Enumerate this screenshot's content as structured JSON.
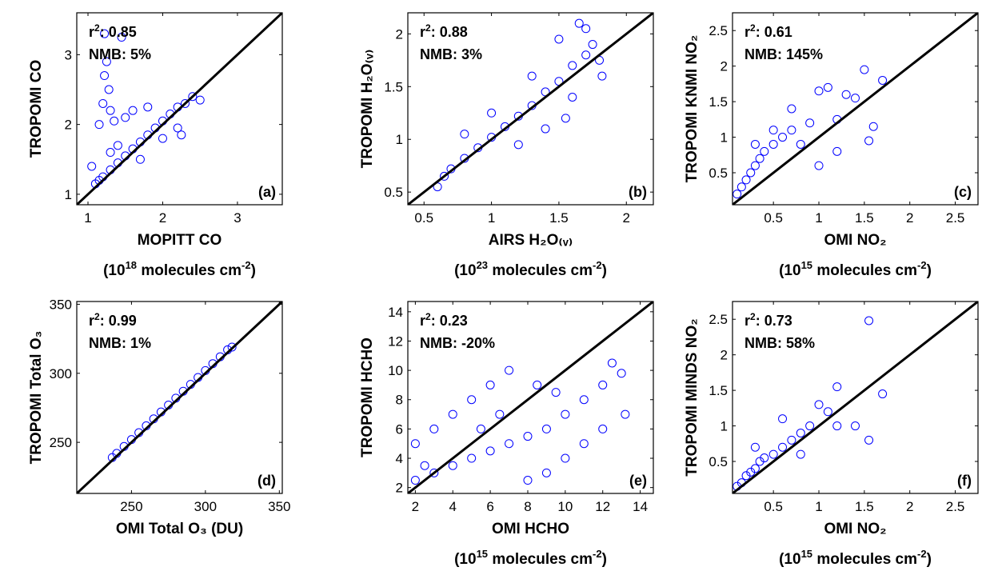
{
  "chart_data": [
    {
      "type": "scatter",
      "panel_label": "(a)",
      "xlabel": "MOPITT CO",
      "xlabel_units": [
        "(10",
        "18",
        " molecules cm",
        "-2",
        ")"
      ],
      "ylabel": "TROPOMI CO",
      "xlim": [
        0.85,
        3.6
      ],
      "ylim": [
        0.85,
        3.6
      ],
      "xticks": [
        1,
        2,
        3
      ],
      "yticks": [
        1,
        2,
        3
      ],
      "stats": {
        "r2": "0.85",
        "nmb": "5%"
      },
      "series": [
        {
          "color": "#0000ff",
          "marker": "open-circle",
          "points": [
            [
              1.1,
              1.15
            ],
            [
              1.15,
              1.2
            ],
            [
              1.2,
              1.25
            ],
            [
              1.3,
              1.35
            ],
            [
              1.4,
              1.45
            ],
            [
              1.5,
              1.55
            ],
            [
              1.6,
              1.65
            ],
            [
              1.7,
              1.75
            ],
            [
              1.8,
              1.85
            ],
            [
              1.9,
              1.95
            ],
            [
              2.0,
              2.05
            ],
            [
              2.1,
              2.15
            ],
            [
              2.2,
              2.25
            ],
            [
              2.3,
              2.3
            ],
            [
              2.4,
              2.4
            ],
            [
              1.25,
              2.9
            ],
            [
              1.22,
              2.7
            ],
            [
              1.28,
              2.5
            ],
            [
              1.2,
              2.3
            ],
            [
              1.3,
              2.2
            ],
            [
              1.45,
              3.25
            ],
            [
              1.22,
              3.3
            ],
            [
              1.35,
              2.05
            ],
            [
              1.5,
              2.1
            ],
            [
              1.6,
              2.2
            ],
            [
              1.8,
              2.25
            ],
            [
              2.0,
              1.8
            ],
            [
              2.2,
              1.95
            ],
            [
              2.25,
              1.85
            ],
            [
              1.05,
              1.4
            ],
            [
              2.5,
              2.35
            ],
            [
              1.4,
              1.7
            ],
            [
              1.7,
              1.5
            ],
            [
              1.3,
              1.6
            ],
            [
              1.15,
              2.0
            ]
          ]
        }
      ]
    },
    {
      "type": "scatter",
      "panel_label": "(b)",
      "xlabel": "AIRS H₂O₍ᵥ₎",
      "xlabel_units": [
        "(10",
        "23",
        " molecules cm",
        "-2",
        ")"
      ],
      "ylabel": "TROPOMI H₂O₍ᵥ₎",
      "xlim": [
        0.38,
        2.2
      ],
      "ylim": [
        0.38,
        2.2
      ],
      "xticks": [
        0.5,
        1,
        1.5,
        2
      ],
      "yticks": [
        0.5,
        1,
        1.5,
        2
      ],
      "stats": {
        "r2": "0.88",
        "nmb": "3%"
      },
      "series": [
        {
          "color": "#0000ff",
          "marker": "open-circle",
          "points": [
            [
              0.6,
              0.55
            ],
            [
              0.65,
              0.65
            ],
            [
              0.7,
              0.72
            ],
            [
              0.8,
              0.82
            ],
            [
              0.9,
              0.92
            ],
            [
              1.0,
              1.02
            ],
            [
              1.1,
              1.12
            ],
            [
              1.2,
              1.22
            ],
            [
              1.3,
              1.32
            ],
            [
              1.4,
              1.45
            ],
            [
              1.5,
              1.55
            ],
            [
              1.6,
              1.7
            ],
            [
              1.7,
              1.8
            ],
            [
              1.75,
              1.9
            ],
            [
              1.65,
              2.1
            ],
            [
              1.8,
              1.75
            ],
            [
              1.5,
              1.95
            ],
            [
              1.3,
              1.6
            ],
            [
              1.2,
              0.95
            ],
            [
              1.4,
              1.1
            ],
            [
              1.6,
              1.4
            ],
            [
              1.0,
              1.25
            ],
            [
              0.8,
              1.05
            ],
            [
              1.7,
              2.05
            ],
            [
              1.82,
              1.6
            ],
            [
              1.55,
              1.2
            ]
          ]
        }
      ]
    },
    {
      "type": "scatter",
      "panel_label": "(c)",
      "xlabel": "OMI NO₂",
      "xlabel_units": [
        "(10",
        "15",
        " molecules cm",
        "-2",
        ")"
      ],
      "ylabel": "TROPOMI KNMI NO₂",
      "xlim": [
        0.05,
        2.75
      ],
      "ylim": [
        0.05,
        2.75
      ],
      "xticks": [
        0.5,
        1,
        1.5,
        2,
        2.5
      ],
      "yticks": [
        0.5,
        1,
        1.5,
        2,
        2.5
      ],
      "stats": {
        "r2": "0.61",
        "nmb": "145%"
      },
      "series": [
        {
          "color": "#0000ff",
          "marker": "open-circle",
          "points": [
            [
              0.1,
              0.2
            ],
            [
              0.15,
              0.3
            ],
            [
              0.2,
              0.4
            ],
            [
              0.25,
              0.5
            ],
            [
              0.3,
              0.6
            ],
            [
              0.35,
              0.7
            ],
            [
              0.4,
              0.8
            ],
            [
              0.5,
              0.9
            ],
            [
              0.6,
              1.0
            ],
            [
              0.7,
              1.1
            ],
            [
              0.8,
              0.9
            ],
            [
              0.9,
              1.2
            ],
            [
              1.0,
              1.65
            ],
            [
              1.1,
              1.7
            ],
            [
              1.3,
              1.6
            ],
            [
              1.4,
              1.55
            ],
            [
              1.5,
              1.95
            ],
            [
              1.6,
              1.15
            ],
            [
              1.7,
              1.8
            ],
            [
              1.55,
              0.95
            ],
            [
              1.2,
              1.25
            ],
            [
              0.7,
              1.4
            ],
            [
              0.5,
              1.1
            ],
            [
              0.3,
              0.9
            ],
            [
              1.0,
              0.6
            ],
            [
              1.2,
              0.8
            ]
          ]
        }
      ]
    },
    {
      "type": "scatter",
      "panel_label": "(d)",
      "xlabel": "OMI Total O₃ (DU)",
      "ylabel": "TROPOMI Total O₃",
      "xlim": [
        213,
        352
      ],
      "ylim": [
        213,
        352
      ],
      "xticks": [
        250,
        300,
        350
      ],
      "yticks": [
        250,
        300,
        350
      ],
      "stats": {
        "r2": "0.99",
        "nmb": "1%"
      },
      "series": [
        {
          "color": "#0000ff",
          "marker": "open-circle",
          "points": [
            [
              237,
              239
            ],
            [
              240,
              242
            ],
            [
              245,
              247
            ],
            [
              250,
              252
            ],
            [
              255,
              257
            ],
            [
              260,
              262
            ],
            [
              265,
              267
            ],
            [
              270,
              272
            ],
            [
              275,
              277
            ],
            [
              280,
              282
            ],
            [
              285,
              287
            ],
            [
              290,
              292
            ],
            [
              295,
              297
            ],
            [
              300,
              302
            ],
            [
              305,
              307
            ],
            [
              310,
              312
            ],
            [
              315,
              317
            ],
            [
              318,
              319
            ]
          ]
        }
      ]
    },
    {
      "type": "scatter",
      "panel_label": "(e)",
      "xlabel": "OMI HCHO",
      "xlabel_units": [
        "(10",
        "15",
        " molecules cm",
        "-2",
        ")"
      ],
      "ylabel": "TROPOMI HCHO",
      "xlim": [
        1.6,
        14.7
      ],
      "ylim": [
        1.6,
        14.7
      ],
      "xticks": [
        2,
        4,
        6,
        8,
        10,
        12,
        14
      ],
      "yticks": [
        2,
        4,
        6,
        8,
        10,
        12,
        14
      ],
      "stats": {
        "r2": "0.23",
        "nmb": "-20%"
      },
      "series": [
        {
          "color": "#0000ff",
          "marker": "open-circle",
          "points": [
            [
              2,
              2.5
            ],
            [
              3,
              3
            ],
            [
              4,
              3.5
            ],
            [
              5,
              4
            ],
            [
              6,
              4.5
            ],
            [
              7,
              5
            ],
            [
              8,
              5.5
            ],
            [
              9,
              6
            ],
            [
              10,
              7
            ],
            [
              11,
              8
            ],
            [
              12,
              9
            ],
            [
              13,
              9.8
            ],
            [
              12.5,
              10.5
            ],
            [
              13.2,
              7
            ],
            [
              12,
              6
            ],
            [
              11,
              5
            ],
            [
              10,
              4
            ],
            [
              9,
              3
            ],
            [
              8,
              2.5
            ],
            [
              6,
              9
            ],
            [
              5,
              8
            ],
            [
              4,
              7
            ],
            [
              3,
              6
            ],
            [
              2,
              5
            ],
            [
              7,
              10
            ],
            [
              8.5,
              9
            ],
            [
              2.5,
              3.5
            ],
            [
              5.5,
              6
            ],
            [
              6.5,
              7
            ],
            [
              9.5,
              8.5
            ]
          ]
        }
      ]
    },
    {
      "type": "scatter",
      "panel_label": "(f)",
      "xlabel": "OMI NO₂",
      "xlabel_units": [
        "(10",
        "15",
        " molecules cm",
        "-2",
        ")"
      ],
      "ylabel": "TROPOMI MINDS NO₂",
      "xlim": [
        0.05,
        2.75
      ],
      "ylim": [
        0.05,
        2.75
      ],
      "xticks": [
        0.5,
        1,
        1.5,
        2,
        2.5
      ],
      "yticks": [
        0.5,
        1,
        1.5,
        2,
        2.5
      ],
      "stats": {
        "r2": "0.73",
        "nmb": "58%"
      },
      "series": [
        {
          "color": "#0000ff",
          "marker": "open-circle",
          "points": [
            [
              0.1,
              0.15
            ],
            [
              0.15,
              0.2
            ],
            [
              0.2,
              0.3
            ],
            [
              0.25,
              0.35
            ],
            [
              0.3,
              0.4
            ],
            [
              0.35,
              0.5
            ],
            [
              0.4,
              0.55
            ],
            [
              0.5,
              0.6
            ],
            [
              0.6,
              0.7
            ],
            [
              0.7,
              0.8
            ],
            [
              0.8,
              0.9
            ],
            [
              0.9,
              1.0
            ],
            [
              1.0,
              1.3
            ],
            [
              1.1,
              1.2
            ],
            [
              1.2,
              1.55
            ],
            [
              1.4,
              1.0
            ],
            [
              1.55,
              0.8
            ],
            [
              1.7,
              1.45
            ],
            [
              1.55,
              2.48
            ],
            [
              0.6,
              1.1
            ],
            [
              0.3,
              0.7
            ],
            [
              0.8,
              0.6
            ],
            [
              1.2,
              1.0
            ]
          ]
        }
      ]
    }
  ]
}
